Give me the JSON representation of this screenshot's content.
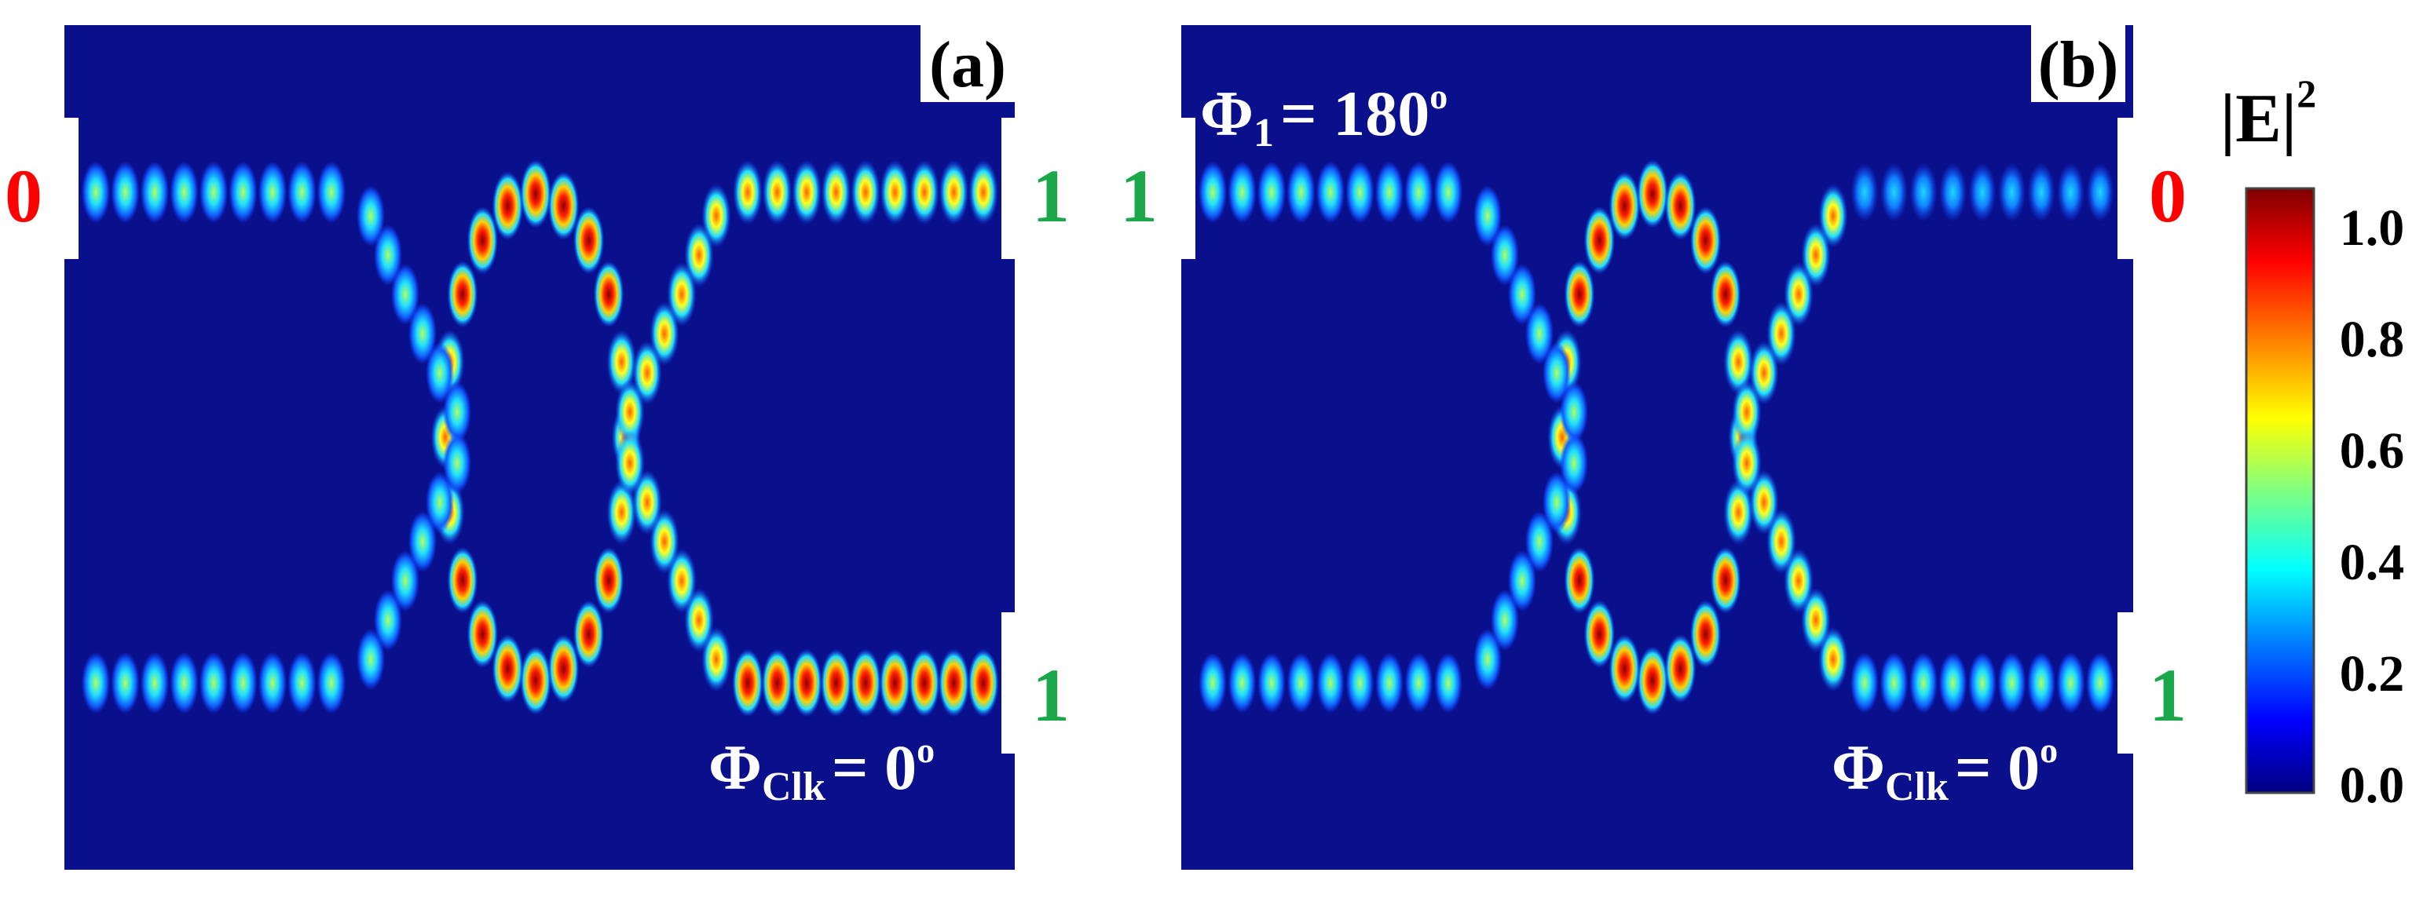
{
  "panel_a": {
    "tag": "(a)",
    "left_label": "0",
    "right_top_label": "1",
    "right_bottom_label": "1",
    "phase_clk": {
      "symbol": "Φ",
      "sub": "Clk",
      "rest": "= 0",
      "sup": "o"
    }
  },
  "panel_b": {
    "tag": "(b)",
    "left_label": "1",
    "right_top_label": "0",
    "right_bottom_label": "1",
    "phase_1": {
      "symbol": "Φ",
      "sub": "1",
      "rest": "= 180",
      "sup": "o"
    },
    "phase_clk": {
      "symbol": "Φ",
      "sub": "Clk",
      "rest": "= 0",
      "sup": "o"
    }
  },
  "colorbar": {
    "title": "|E|",
    "title_sup": "2",
    "ticks": [
      "1.0",
      "0.8",
      "0.6",
      "0.4",
      "0.2",
      "0.0"
    ],
    "colors": [
      "#00007f",
      "#0000ff",
      "#0080ff",
      "#00ffff",
      "#80ff80",
      "#ffff00",
      "#ff8000",
      "#ff0000",
      "#7f0000"
    ]
  },
  "colors": {
    "background": "#0a0f8c",
    "red_label": "#ff0000",
    "green_label": "#1aa84a",
    "white": "#ffffff"
  },
  "figure_data": {
    "panel_a": {
      "top_track": {
        "left_intensity": 0.55,
        "right_intensity": 0.75
      },
      "bottom_track": {
        "left_intensity": 0.55,
        "right_intensity": 0.95
      },
      "ellipse_peak_intensity": 1.0
    },
    "panel_b": {
      "top_track": {
        "left_intensity": 0.55,
        "right_intensity": 0.35
      },
      "bottom_track": {
        "left_intensity": 0.45,
        "right_intensity": 0.5
      },
      "ellipse_peak_intensity": 1.0
    }
  }
}
